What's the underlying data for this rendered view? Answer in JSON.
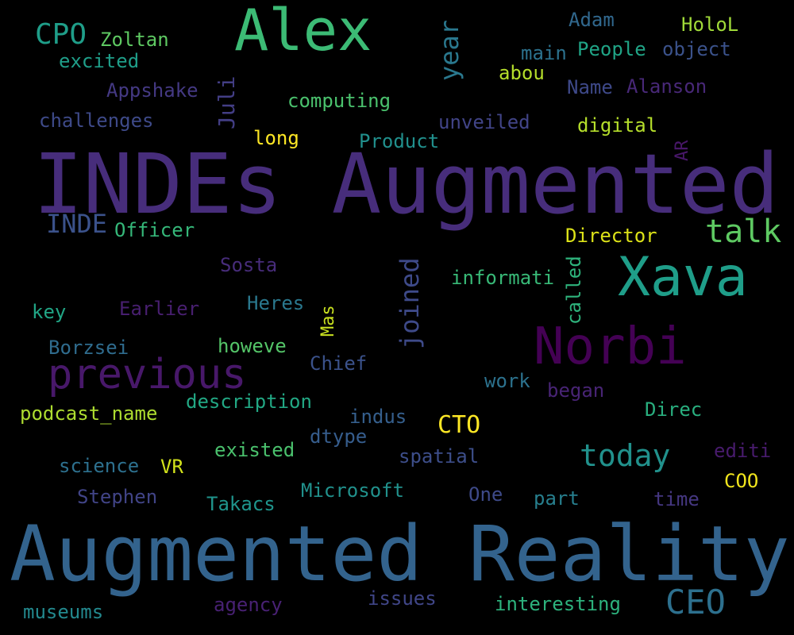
{
  "words": [
    {
      "text": "Augmented Reality",
      "color": "#33638d"
    },
    {
      "text": "INDEs Augmented",
      "color": "#472d7b"
    },
    {
      "text": "Alex",
      "color": "#3cbb75"
    },
    {
      "text": "Xava",
      "color": "#1f9e89"
    },
    {
      "text": "Norbi",
      "color": "#440154"
    },
    {
      "text": "previous",
      "color": "#48186a"
    },
    {
      "text": "CEO",
      "color": "#2d708e"
    },
    {
      "text": "today",
      "color": "#21918c"
    },
    {
      "text": "talk",
      "color": "#5ec962"
    },
    {
      "text": "CPO",
      "color": "#1f9e89"
    },
    {
      "text": "CTO",
      "color": "#fde725"
    },
    {
      "text": "INDE",
      "color": "#3b528b"
    },
    {
      "text": "Zoltan",
      "color": "#5ec962"
    },
    {
      "text": "excited",
      "color": "#1f9e89"
    },
    {
      "text": "Adam",
      "color": "#31688e"
    },
    {
      "text": "HoloL",
      "color": "#a0da39"
    },
    {
      "text": "main",
      "color": "#2c728e"
    },
    {
      "text": "People",
      "color": "#20a486"
    },
    {
      "text": "object",
      "color": "#3b528b"
    },
    {
      "text": "abou",
      "color": "#b5de2b"
    },
    {
      "text": "Appshake",
      "color": "#443983"
    },
    {
      "text": "Name",
      "color": "#3e4989"
    },
    {
      "text": "Alanson",
      "color": "#482878"
    },
    {
      "text": "computing",
      "color": "#4ac16d"
    },
    {
      "text": "challenges",
      "color": "#3e4a89"
    },
    {
      "text": "unveiled",
      "color": "#414487"
    },
    {
      "text": "digital",
      "color": "#b5de2b"
    },
    {
      "text": "long",
      "color": "#fde725"
    },
    {
      "text": "Product",
      "color": "#21908d"
    },
    {
      "text": "Officer",
      "color": "#35b779"
    },
    {
      "text": "Director",
      "color": "#dde318"
    },
    {
      "text": "Sosta",
      "color": "#472c7a"
    },
    {
      "text": "informati",
      "color": "#38b977"
    },
    {
      "text": "key",
      "color": "#21a585"
    },
    {
      "text": "Earlier",
      "color": "#481f70"
    },
    {
      "text": "Heres",
      "color": "#2a788e"
    },
    {
      "text": "Borzsei",
      "color": "#2f6c8e"
    },
    {
      "text": "howeve",
      "color": "#54c568"
    },
    {
      "text": "Chief",
      "color": "#3b528b"
    },
    {
      "text": "work",
      "color": "#2c728e"
    },
    {
      "text": "began",
      "color": "#482475"
    },
    {
      "text": "description",
      "color": "#22a884"
    },
    {
      "text": "podcast_name",
      "color": "#addc30"
    },
    {
      "text": "indus",
      "color": "#355f8d"
    },
    {
      "text": "Direc",
      "color": "#29af7f"
    },
    {
      "text": "dtype",
      "color": "#365d8d"
    },
    {
      "text": "existed",
      "color": "#4ac16d"
    },
    {
      "text": "spatial",
      "color": "#3d4e8a"
    },
    {
      "text": "editi",
      "color": "#481b6d"
    },
    {
      "text": "science",
      "color": "#2d708e"
    },
    {
      "text": "VR",
      "color": "#d2e21b"
    },
    {
      "text": "COO",
      "color": "#f1e51d"
    },
    {
      "text": "Stephen",
      "color": "#414487"
    },
    {
      "text": "Takacs",
      "color": "#1f948c"
    },
    {
      "text": "Microsoft",
      "color": "#21918c"
    },
    {
      "text": "One",
      "color": "#3e4a89"
    },
    {
      "text": "part",
      "color": "#277f8e"
    },
    {
      "text": "time",
      "color": "#453781"
    },
    {
      "text": "museums",
      "color": "#23898e"
    },
    {
      "text": "agency",
      "color": "#482173"
    },
    {
      "text": "issues",
      "color": "#404688"
    },
    {
      "text": "interesting",
      "color": "#2db27d"
    },
    {
      "text": "year",
      "color": "#2a788e"
    },
    {
      "text": "Juli",
      "color": "#433e85"
    },
    {
      "text": "joined",
      "color": "#3e4a89"
    },
    {
      "text": "called",
      "color": "#2eb37c"
    },
    {
      "text": "Mas",
      "color": "#c8e020"
    },
    {
      "text": "AR",
      "color": "#481769"
    }
  ]
}
